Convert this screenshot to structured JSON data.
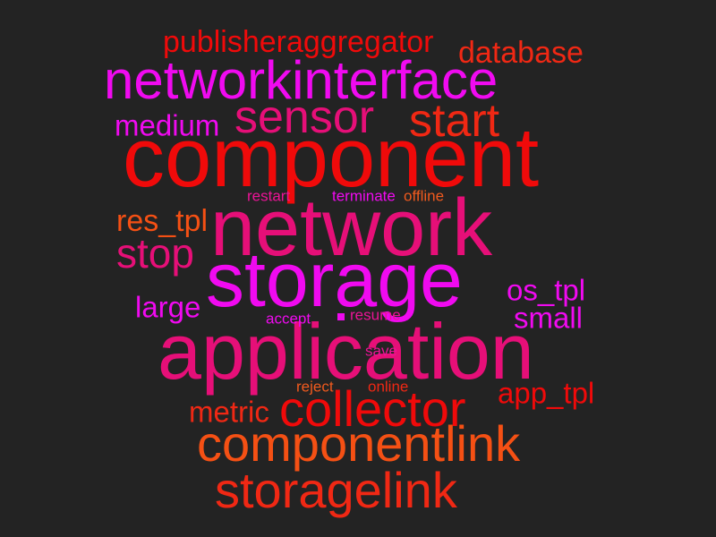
{
  "palette": {
    "background": "#232323",
    "red": "#f00a0a",
    "red_orange": "#f02814",
    "orange": "#f55014",
    "orange_light": "#f05a1e",
    "magenta": "#f00af0",
    "pink": "#e60f78",
    "deep_pink": "#eb1496"
  },
  "words": [
    {
      "text": "component",
      "color": "#f00a0a"
    },
    {
      "text": "network",
      "color": "#e60f78"
    },
    {
      "text": "storage",
      "color": "#f00af0"
    },
    {
      "text": "application",
      "color": "#e60f78"
    },
    {
      "text": "networkinterface",
      "color": "#f00af0"
    },
    {
      "text": "componentlink",
      "color": "#f55014"
    },
    {
      "text": "storagelink",
      "color": "#f02814"
    },
    {
      "text": "collector",
      "color": "#f00a0a"
    },
    {
      "text": "sensor",
      "color": "#e60f78"
    },
    {
      "text": "start",
      "color": "#f02814"
    },
    {
      "text": "publisheraggregator",
      "color": "#f00a0a"
    },
    {
      "text": "database",
      "color": "#f02814"
    },
    {
      "text": "medium",
      "color": "#f00af0"
    },
    {
      "text": "stop",
      "color": "#e60f78"
    },
    {
      "text": "res_tpl",
      "color": "#f55014"
    },
    {
      "text": "os_tpl",
      "color": "#f00af0"
    },
    {
      "text": "small",
      "color": "#f00af0"
    },
    {
      "text": "large",
      "color": "#f00af0"
    },
    {
      "text": "app_tpl",
      "color": "#f00a0a"
    },
    {
      "text": "metric",
      "color": "#f02814"
    },
    {
      "text": "restart",
      "color": "#eb1496"
    },
    {
      "text": "terminate",
      "color": "#f00af0"
    },
    {
      "text": "offline",
      "color": "#f05a1e"
    },
    {
      "text": "accept",
      "color": "#f00af0"
    },
    {
      "text": "resume",
      "color": "#eb1496"
    },
    {
      "text": "save",
      "color": "#eb1496"
    },
    {
      "text": "reject",
      "color": "#f05a1e"
    },
    {
      "text": "online",
      "color": "#f02814"
    },
    {
      "text": "",
      "color": "#f00af0"
    }
  ]
}
